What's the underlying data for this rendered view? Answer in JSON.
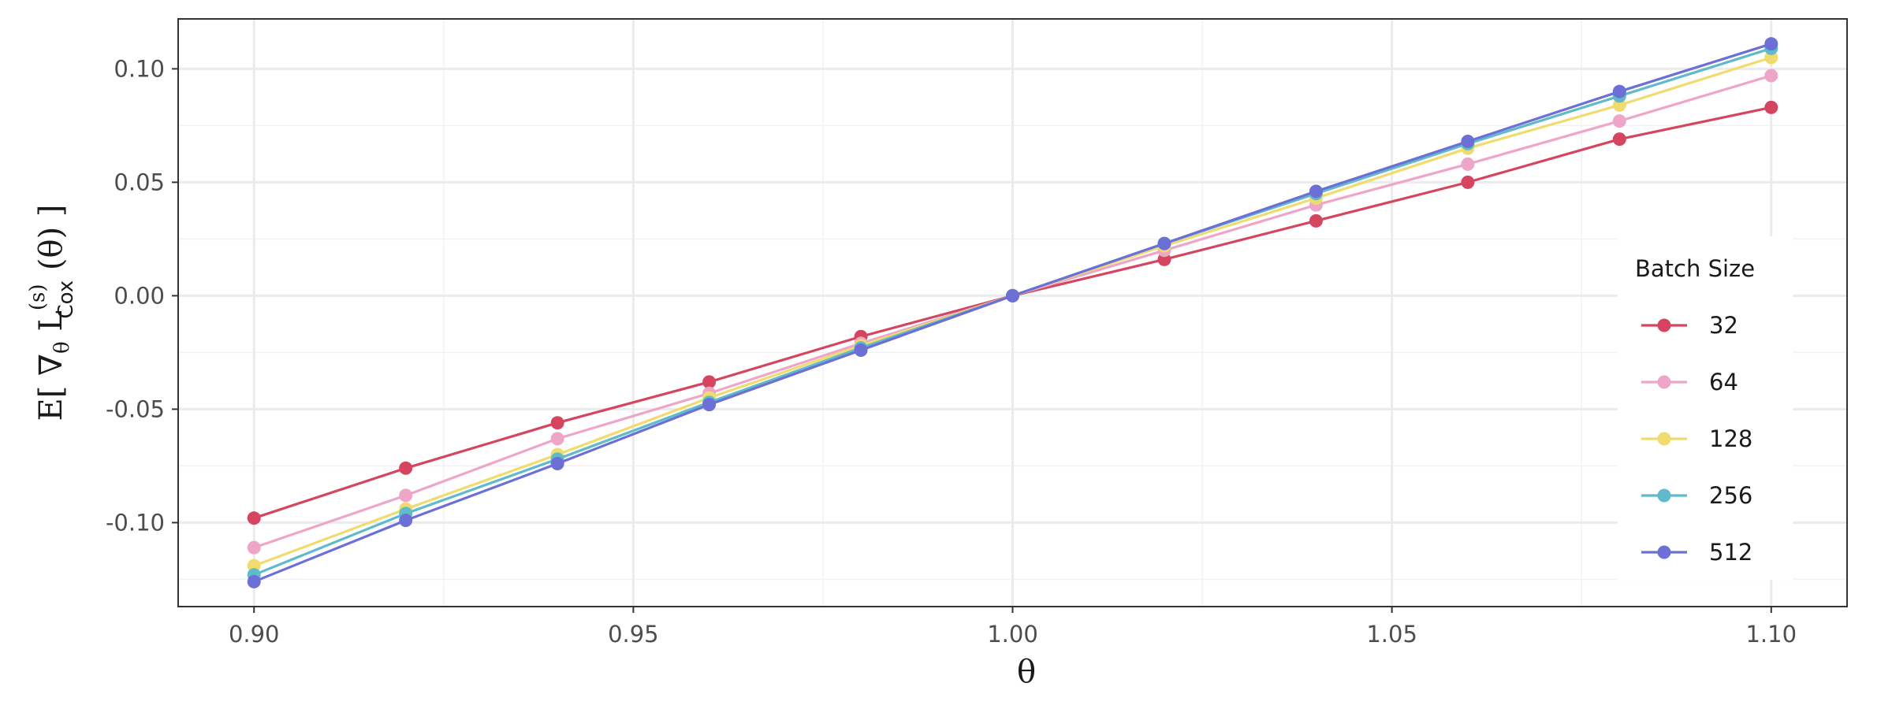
{
  "chart_data": {
    "type": "line",
    "xlabel": "θ",
    "ylabel": {
      "prefix": "E[ ∇",
      "sub1": "θ",
      "mid": " L",
      "sup": "(s)",
      "sub2": "Cox",
      "suffix": " (θ) ]"
    },
    "xlim": [
      0.89,
      1.11
    ],
    "ylim": [
      -0.137,
      0.122
    ],
    "x_ticks": [
      0.9,
      0.95,
      1.0,
      1.05,
      1.1
    ],
    "x_tick_labels": [
      "0.90",
      "0.95",
      "1.00",
      "1.05",
      "1.10"
    ],
    "y_ticks": [
      -0.1,
      -0.05,
      0.0,
      0.05,
      0.1
    ],
    "y_tick_labels": [
      "-0.10",
      "-0.05",
      "0.00",
      "0.05",
      "0.10"
    ],
    "grid": true,
    "legend": {
      "title": "Batch Size",
      "position": "right"
    },
    "x": [
      0.9,
      0.92,
      0.94,
      0.96,
      0.98,
      1.0,
      1.02,
      1.04,
      1.06,
      1.08,
      1.1
    ],
    "series": [
      {
        "name": "32",
        "color": "#d6455f",
        "values": [
          -0.098,
          -0.076,
          -0.056,
          -0.038,
          -0.018,
          0.0,
          0.016,
          0.033,
          0.05,
          0.069,
          0.083
        ]
      },
      {
        "name": "64",
        "color": "#eea6c8",
        "values": [
          -0.111,
          -0.088,
          -0.063,
          -0.043,
          -0.021,
          0.0,
          0.02,
          0.04,
          0.058,
          0.077,
          0.097
        ]
      },
      {
        "name": "128",
        "color": "#f0dc6e",
        "values": [
          -0.119,
          -0.094,
          -0.07,
          -0.045,
          -0.022,
          0.0,
          0.022,
          0.043,
          0.065,
          0.084,
          0.105
        ]
      },
      {
        "name": "256",
        "color": "#5fbac9",
        "values": [
          -0.123,
          -0.096,
          -0.072,
          -0.047,
          -0.023,
          0.0,
          0.023,
          0.045,
          0.067,
          0.088,
          0.109
        ]
      },
      {
        "name": "512",
        "color": "#6b6fd6",
        "values": [
          -0.126,
          -0.099,
          -0.074,
          -0.048,
          -0.024,
          0.0,
          0.023,
          0.046,
          0.068,
          0.09,
          0.111
        ]
      }
    ]
  }
}
